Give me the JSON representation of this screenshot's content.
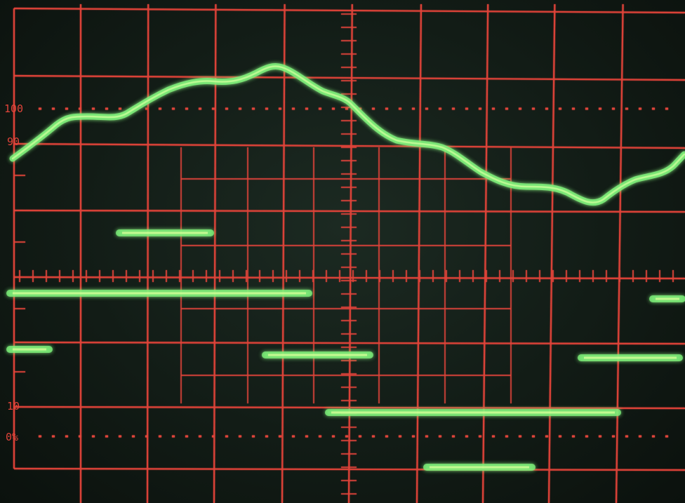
{
  "scale_labels": {
    "top_100": "100",
    "top_90": "90",
    "bottom_10": "10",
    "bottom_0": "0%"
  },
  "colors": {
    "graticule": "#e0443a",
    "trace": "#7ef07a",
    "trace_core": "#d8ff9a",
    "background": "#121c16"
  }
}
